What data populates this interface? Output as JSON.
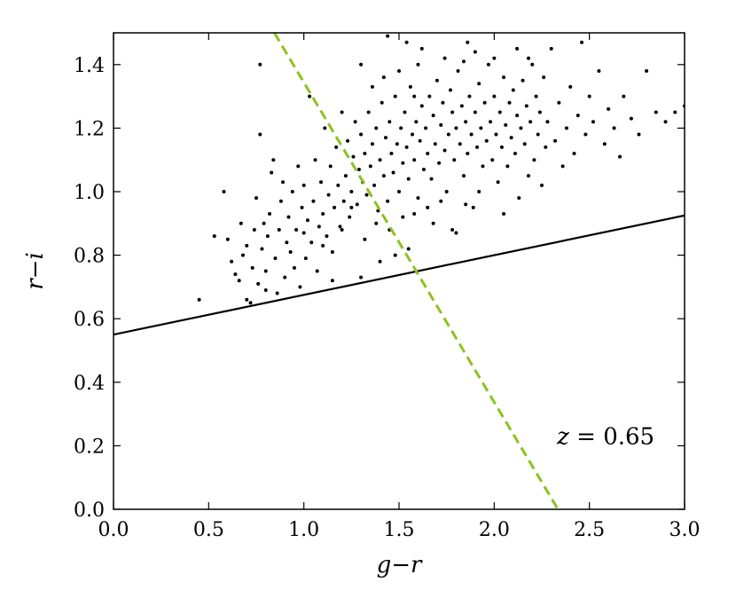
{
  "chart_data": {
    "type": "scatter",
    "xlabel": "g−r",
    "ylabel": "r−i",
    "xlim": [
      0.0,
      3.0
    ],
    "ylim": [
      0.0,
      1.5
    ],
    "xticks": [
      "0.0",
      "0.5",
      "1.0",
      "1.5",
      "2.0",
      "2.5",
      "3.0"
    ],
    "yticks": [
      "0.0",
      "0.2",
      "0.4",
      "0.6",
      "0.8",
      "1.0",
      "1.2",
      "1.4"
    ],
    "annotation": {
      "var": "z",
      "eq": "=",
      "value": "0.65"
    },
    "grid": false,
    "lines": [
      {
        "name": "",
        "style": "solid",
        "color": "#000000",
        "x": [
          0.0,
          3.0
        ],
        "y": [
          0.55,
          0.925
        ]
      },
      {
        "name": "",
        "style": "dashed",
        "color": "#8dc21f",
        "x": [
          0.845,
          2.335
        ],
        "y": [
          1.5,
          0.0
        ]
      }
    ],
    "series": [
      {
        "name": "",
        "color": "#000000",
        "points": [
          [
            0.45,
            0.66
          ],
          [
            0.53,
            0.86
          ],
          [
            0.58,
            1.0
          ],
          [
            0.6,
            0.85
          ],
          [
            0.62,
            0.78
          ],
          [
            0.64,
            0.74
          ],
          [
            0.66,
            0.72
          ],
          [
            0.67,
            0.9
          ],
          [
            0.68,
            0.8
          ],
          [
            0.7,
            0.66
          ],
          [
            0.7,
            0.83
          ],
          [
            0.72,
            0.65
          ],
          [
            0.73,
            0.76
          ],
          [
            0.74,
            0.88
          ],
          [
            0.75,
            0.98
          ],
          [
            0.76,
            0.71
          ],
          [
            0.77,
            1.18
          ],
          [
            0.77,
            1.4
          ],
          [
            0.78,
            0.82
          ],
          [
            0.79,
            0.9
          ],
          [
            0.8,
            0.69
          ],
          [
            0.8,
            0.75
          ],
          [
            0.81,
            0.86
          ],
          [
            0.82,
            0.93
          ],
          [
            0.83,
            1.06
          ],
          [
            0.84,
            1.1
          ],
          [
            0.85,
            0.79
          ],
          [
            0.86,
            0.68
          ],
          [
            0.87,
            0.88
          ],
          [
            0.88,
            0.97
          ],
          [
            0.89,
            1.03
          ],
          [
            0.9,
            0.73
          ],
          [
            0.91,
            0.84
          ],
          [
            0.92,
            0.92
          ],
          [
            0.93,
            0.81
          ],
          [
            0.94,
            1.0
          ],
          [
            0.95,
            0.76
          ],
          [
            0.96,
            0.88
          ],
          [
            0.97,
            1.08
          ],
          [
            0.98,
            0.7
          ],
          [
            0.99,
            0.95
          ],
          [
            1.0,
            0.87
          ],
          [
            1.0,
            1.02
          ],
          [
            1.01,
            0.79
          ],
          [
            1.02,
            0.91
          ],
          [
            1.03,
            1.3
          ],
          [
            1.04,
            0.84
          ],
          [
            1.05,
            0.97
          ],
          [
            1.06,
            1.1
          ],
          [
            1.07,
            0.75
          ],
          [
            1.08,
            0.89
          ],
          [
            1.09,
            1.03
          ],
          [
            1.1,
            0.93
          ],
          [
            1.11,
            1.2
          ],
          [
            1.12,
            0.86
          ],
          [
            1.13,
            0.99
          ],
          [
            1.14,
            1.08
          ],
          [
            1.15,
            0.81
          ],
          [
            1.16,
            0.95
          ],
          [
            1.17,
            1.14
          ],
          [
            1.18,
            1.02
          ],
          [
            1.19,
            0.89
          ],
          [
            1.2,
            1.25
          ],
          [
            1.21,
            0.97
          ],
          [
            1.22,
            1.05
          ],
          [
            1.23,
            1.16
          ],
          [
            1.24,
            0.92
          ],
          [
            1.25,
            1.0
          ],
          [
            1.26,
            1.11
          ],
          [
            1.27,
            1.22
          ],
          [
            1.28,
            0.96
          ],
          [
            1.29,
            1.07
          ],
          [
            1.3,
            0.73
          ],
          [
            1.3,
            1.18
          ],
          [
            1.31,
            1.03
          ],
          [
            1.32,
            1.12
          ],
          [
            1.33,
            0.99
          ],
          [
            1.34,
            1.25
          ],
          [
            1.35,
            1.08
          ],
          [
            1.36,
            1.15
          ],
          [
            1.37,
            1.02
          ],
          [
            1.38,
            1.2
          ],
          [
            1.39,
            0.94
          ],
          [
            1.4,
            1.1
          ],
          [
            1.41,
            1.28
          ],
          [
            1.42,
            1.05
          ],
          [
            1.43,
            1.17
          ],
          [
            1.44,
            0.97
          ],
          [
            1.45,
            1.22
          ],
          [
            1.46,
            1.12
          ],
          [
            1.47,
            1.06
          ],
          [
            1.48,
            1.3
          ],
          [
            1.49,
            1.15
          ],
          [
            1.5,
            1.0
          ],
          [
            1.5,
            1.38
          ],
          [
            1.51,
            1.2
          ],
          [
            1.52,
            1.09
          ],
          [
            1.53,
            1.25
          ],
          [
            1.54,
            1.14
          ],
          [
            1.55,
            1.04
          ],
          [
            1.56,
            1.33
          ],
          [
            1.57,
            1.18
          ],
          [
            1.58,
            1.1
          ],
          [
            1.59,
            1.22
          ],
          [
            1.6,
            0.98
          ],
          [
            1.6,
            1.4
          ],
          [
            1.61,
            1.16
          ],
          [
            1.62,
            1.27
          ],
          [
            1.63,
            1.07
          ],
          [
            1.64,
            1.2
          ],
          [
            1.65,
            1.12
          ],
          [
            1.66,
            1.3
          ],
          [
            1.67,
            1.04
          ],
          [
            1.68,
            1.24
          ],
          [
            1.69,
            1.15
          ],
          [
            1.7,
            1.35
          ],
          [
            1.71,
            1.09
          ],
          [
            1.72,
            1.21
          ],
          [
            1.73,
            1.28
          ],
          [
            1.74,
            1.13
          ],
          [
            1.75,
            1.0
          ],
          [
            1.76,
            1.18
          ],
          [
            1.77,
            1.32
          ],
          [
            1.78,
            1.25
          ],
          [
            1.79,
            1.1
          ],
          [
            1.8,
            1.2
          ],
          [
            1.81,
            1.38
          ],
          [
            1.82,
            1.15
          ],
          [
            1.83,
            1.27
          ],
          [
            1.84,
            1.05
          ],
          [
            1.85,
            1.22
          ],
          [
            1.86,
            1.12
          ],
          [
            1.87,
            1.3
          ],
          [
            1.88,
            1.18
          ],
          [
            1.89,
            0.95
          ],
          [
            1.9,
            1.25
          ],
          [
            1.91,
            1.14
          ],
          [
            1.92,
            1.34
          ],
          [
            1.93,
            1.2
          ],
          [
            1.94,
            1.08
          ],
          [
            1.95,
            1.28
          ],
          [
            1.96,
            1.16
          ],
          [
            1.97,
            1.4
          ],
          [
            1.98,
            1.22
          ],
          [
            1.99,
            1.1
          ],
          [
            2.0,
            1.3
          ],
          [
            2.01,
            1.18
          ],
          [
            2.02,
            1.03
          ],
          [
            2.03,
            1.25
          ],
          [
            2.04,
            1.14
          ],
          [
            2.05,
            1.36
          ],
          [
            2.06,
            1.21
          ],
          [
            2.07,
            1.08
          ],
          [
            2.08,
            1.28
          ],
          [
            2.09,
            1.17
          ],
          [
            2.1,
            1.32
          ],
          [
            2.11,
            1.12
          ],
          [
            2.12,
            1.24
          ],
          [
            2.13,
            0.98
          ],
          [
            2.14,
            1.2
          ],
          [
            2.15,
            1.35
          ],
          [
            2.16,
            1.15
          ],
          [
            2.17,
            1.27
          ],
          [
            2.18,
            1.05
          ],
          [
            2.19,
            1.22
          ],
          [
            2.2,
            1.4
          ],
          [
            2.21,
            1.1
          ],
          [
            2.22,
            1.3
          ],
          [
            2.23,
            1.18
          ],
          [
            2.24,
            1.25
          ],
          [
            2.25,
            1.02
          ],
          [
            2.26,
            1.36
          ],
          [
            2.27,
            1.14
          ],
          [
            2.28,
            1.22
          ],
          [
            2.3,
            1.45
          ],
          [
            2.32,
            1.16
          ],
          [
            2.34,
            1.28
          ],
          [
            2.36,
            1.08
          ],
          [
            2.38,
            1.2
          ],
          [
            2.4,
            1.33
          ],
          [
            2.42,
            1.12
          ],
          [
            2.44,
            1.24
          ],
          [
            2.46,
            1.47
          ],
          [
            2.48,
            1.18
          ],
          [
            2.5,
            1.3
          ],
          [
            2.52,
            1.22
          ],
          [
            2.55,
            1.38
          ],
          [
            2.58,
            1.15
          ],
          [
            2.6,
            1.26
          ],
          [
            2.63,
            1.2
          ],
          [
            2.66,
            1.11
          ],
          [
            2.68,
            1.3
          ],
          [
            2.72,
            1.23
          ],
          [
            2.76,
            1.18
          ],
          [
            2.8,
            1.38
          ],
          [
            2.85,
            1.25
          ],
          [
            2.9,
            1.22
          ],
          [
            2.95,
            1.25
          ],
          [
            3.0,
            1.27
          ],
          [
            1.2,
            0.88
          ],
          [
            1.25,
            0.95
          ],
          [
            1.32,
            0.85
          ],
          [
            1.38,
            0.9
          ],
          [
            1.45,
            0.88
          ],
          [
            1.52,
            0.92
          ],
          [
            1.58,
            0.93
          ],
          [
            1.65,
            0.95
          ],
          [
            1.72,
            0.97
          ],
          [
            1.78,
            0.88
          ],
          [
            1.85,
            0.96
          ],
          [
            1.92,
            1.0
          ],
          [
            2.05,
            0.93
          ],
          [
            1.1,
            0.83
          ],
          [
            1.15,
            0.72
          ],
          [
            1.4,
            0.78
          ],
          [
            1.48,
            0.8
          ],
          [
            1.55,
            0.82
          ],
          [
            1.68,
            0.9
          ],
          [
            1.8,
            0.87
          ],
          [
            1.36,
            1.33
          ],
          [
            1.42,
            1.36
          ],
          [
            1.58,
            1.3
          ],
          [
            1.62,
            1.45
          ],
          [
            1.74,
            1.42
          ],
          [
            1.84,
            1.41
          ],
          [
            1.9,
            1.44
          ],
          [
            2.0,
            1.42
          ],
          [
            2.12,
            1.45
          ],
          [
            2.18,
            1.42
          ],
          [
            1.3,
            1.4
          ],
          [
            1.54,
            1.47
          ],
          [
            1.44,
            1.49
          ],
          [
            1.86,
            1.47
          ]
        ]
      }
    ]
  }
}
